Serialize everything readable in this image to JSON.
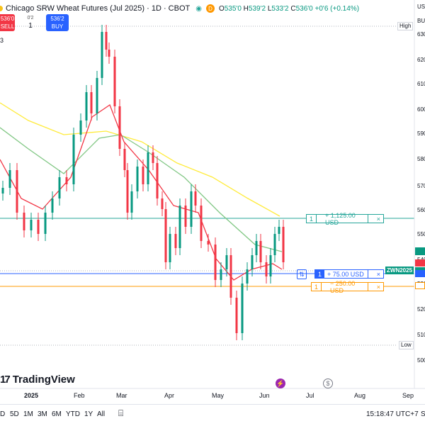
{
  "header": {
    "symbol_title": "Chicago SRW Wheat Futures (Jul 2025) · 1D · CBOT",
    "data_badge": "D",
    "ohlc": {
      "o_label": "O",
      "o": "535'0",
      "h_label": "H",
      "h": "539'2",
      "l_label": "L",
      "l": "533'2",
      "c_label": "C",
      "c": "536'0",
      "change": "+0'6 (+0.14%)"
    }
  },
  "trade": {
    "sell_price": "536'0",
    "sell_label": "SELL",
    "spread": "0'2",
    "quantity": "1",
    "buy_price": "536'2",
    "buy_label": "BUY"
  },
  "indicator_count": "3",
  "orders": [
    {
      "qty": "1",
      "pnl": "+ 1,125.00 USD",
      "close": "×"
    },
    {
      "qty": "1",
      "pnl": "+ 75.00 USD",
      "close": "×",
      "extra": "⇅"
    },
    {
      "qty": "1",
      "pnl": "− 250.00 USD",
      "close": "×"
    }
  ],
  "price_tags": {
    "high": "High",
    "low": "Low",
    "symbol": "ZWN2025"
  },
  "price_axis": {
    "currency": "US",
    "currency2": "BU",
    "labels": [
      "630",
      "620",
      "610",
      "600",
      "590",
      "580",
      "570",
      "560",
      "550",
      "540",
      "530",
      "520",
      "510",
      "500"
    ]
  },
  "xaxis": {
    "labels": [
      "2025",
      "Feb",
      "Mar",
      "Apr",
      "May",
      "Jun",
      "Jul",
      "Aug",
      "Sep"
    ]
  },
  "bottom": {
    "ranges": [
      "5D",
      "1M",
      "3M",
      "6M",
      "YTD",
      "1Y",
      "All"
    ],
    "first_range": "D",
    "clock": "15:18:47 UTC+7",
    "trailing": "S"
  },
  "brand": "TradingView",
  "colors": {
    "up": "#089981",
    "down": "#f23645",
    "ma_fast": "#f23645",
    "ma_mid": "#81c784",
    "ma_slow": "#ffeb3b",
    "order_line": "#26a69a",
    "stop_line": "#ff9800",
    "entry_line": "#2962ff"
  }
}
